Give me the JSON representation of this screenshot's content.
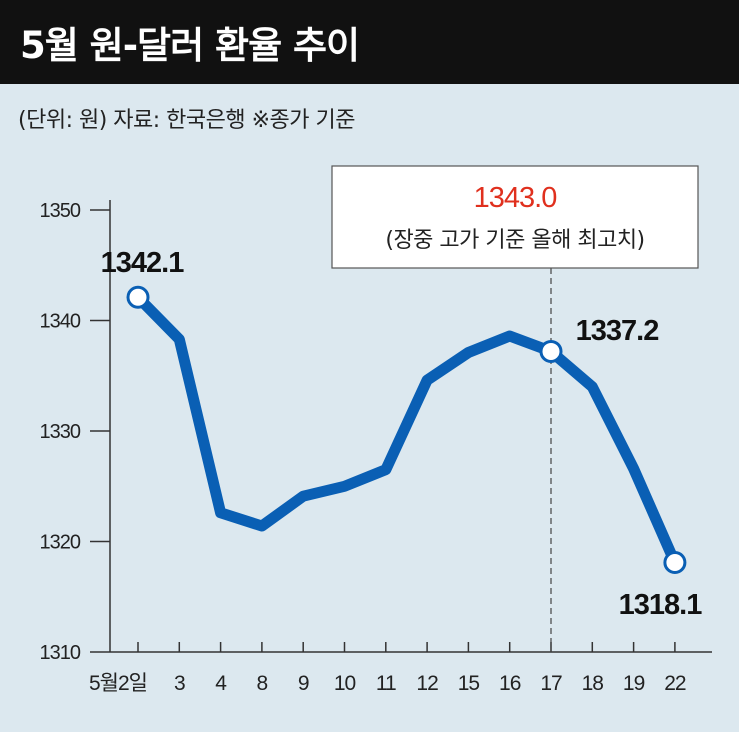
{
  "header": {
    "title": "5월 원-달러 환율 추이",
    "subtitle": "(단위: 원)  자료: 한국은행  ※종가 기준"
  },
  "colors": {
    "line": "#0a5fb4",
    "highlight": "#e0301e",
    "axis": "#333333",
    "background": "#dce8ef"
  },
  "chart_data": {
    "type": "line",
    "title": "5월 원-달러 환율 추이",
    "unit": "원",
    "source": "한국은행",
    "note": "※종가 기준",
    "categories": [
      "5월2일",
      "3",
      "4",
      "8",
      "9",
      "10",
      "11",
      "12",
      "15",
      "16",
      "17",
      "18",
      "19",
      "22"
    ],
    "series": [
      {
        "values": [
          1342.1,
          1338.3,
          1322.6,
          1321.4,
          1324.1,
          1325.0,
          1326.5,
          1334.6,
          1337.1,
          1338.6,
          1337.2,
          1334.0,
          1326.6,
          1318.1
        ]
      }
    ],
    "ylim": [
      1310,
      1350
    ],
    "yticks": [
      1310,
      1320,
      1330,
      1340,
      1350
    ],
    "grid": false,
    "labeled_points": [
      {
        "index": 0,
        "label": "1342.1"
      },
      {
        "index": 10,
        "label": "1337.2"
      },
      {
        "index": 13,
        "label": "1318.1"
      }
    ],
    "annotation": {
      "index": 10,
      "value": "1343.0",
      "text": "(장중 고가 기준 올해 최고치)"
    }
  }
}
